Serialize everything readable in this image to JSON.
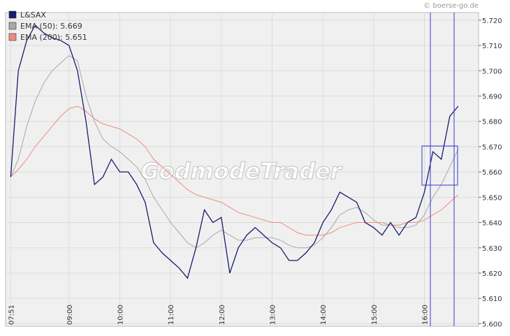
{
  "chart_data": {
    "type": "line",
    "source": "© boerse-go.de",
    "watermark": "GodmodeTrader",
    "x": [
      "07:51",
      "08:00",
      "08:10",
      "08:20",
      "08:30",
      "08:40",
      "08:50",
      "09:00",
      "09:10",
      "09:20",
      "09:30",
      "09:40",
      "09:50",
      "10:00",
      "10:10",
      "10:20",
      "10:30",
      "10:40",
      "10:50",
      "11:00",
      "11:10",
      "11:20",
      "11:30",
      "11:40",
      "11:50",
      "12:00",
      "12:10",
      "12:20",
      "12:30",
      "12:40",
      "12:50",
      "13:00",
      "13:10",
      "13:20",
      "13:30",
      "13:40",
      "13:50",
      "14:00",
      "14:10",
      "14:20",
      "14:30",
      "14:40",
      "14:50",
      "15:00",
      "15:10",
      "15:20",
      "15:30",
      "15:40",
      "15:50",
      "16:00",
      "16:10",
      "16:20",
      "16:30",
      "16:40"
    ],
    "xlim": [
      "07:45",
      "17:04"
    ],
    "xticks": [
      "07:51",
      "09:00",
      "10:00",
      "11:00",
      "12:00",
      "13:00",
      "14:00",
      "15:00",
      "16:00"
    ],
    "ylim": [
      5.599,
      5.723
    ],
    "yticks": [
      {
        "value": 5.6,
        "label": "5.600"
      },
      {
        "value": 5.61,
        "label": "5.610"
      },
      {
        "value": 5.62,
        "label": "5.620"
      },
      {
        "value": 5.63,
        "label": "5.630"
      },
      {
        "value": 5.64,
        "label": "5.640"
      },
      {
        "value": 5.65,
        "label": "5.650"
      },
      {
        "value": 5.66,
        "label": "5.660"
      },
      {
        "value": 5.67,
        "label": "5.670"
      },
      {
        "value": 5.68,
        "label": "5.680"
      },
      {
        "value": 5.69,
        "label": "5.690"
      },
      {
        "value": 5.7,
        "label": "5.700"
      },
      {
        "value": 5.71,
        "label": "5.710"
      },
      {
        "value": 5.72,
        "label": "5.720"
      }
    ],
    "grid": true,
    "legend": "top-left",
    "series": [
      {
        "name": "L&SAX",
        "color": "#1a1a6e",
        "values": [
          5.658,
          5.7,
          5.712,
          5.718,
          5.715,
          5.713,
          5.712,
          5.71,
          5.7,
          5.68,
          5.655,
          5.658,
          5.665,
          5.66,
          5.66,
          5.655,
          5.648,
          5.632,
          5.628,
          5.625,
          5.622,
          5.618,
          5.63,
          5.645,
          5.64,
          5.642,
          5.62,
          5.63,
          5.635,
          5.638,
          5.635,
          5.632,
          5.63,
          5.625,
          5.625,
          5.628,
          5.632,
          5.64,
          5.645,
          5.652,
          5.65,
          5.648,
          5.64,
          5.638,
          5.635,
          5.64,
          5.635,
          5.64,
          5.642,
          5.652,
          5.668,
          5.665,
          5.682,
          5.686
        ]
      },
      {
        "name": "EMA (50): 5.669",
        "color": "#a8a8a8",
        "values": [
          5.658,
          5.665,
          5.678,
          5.688,
          5.695,
          5.7,
          5.703,
          5.706,
          5.704,
          5.69,
          5.68,
          5.673,
          5.67,
          5.668,
          5.665,
          5.662,
          5.657,
          5.65,
          5.645,
          5.64,
          5.636,
          5.632,
          5.63,
          5.632,
          5.635,
          5.637,
          5.635,
          5.633,
          5.633,
          5.634,
          5.634,
          5.634,
          5.633,
          5.631,
          5.63,
          5.63,
          5.631,
          5.634,
          5.638,
          5.643,
          5.645,
          5.646,
          5.644,
          5.641,
          5.639,
          5.639,
          5.638,
          5.638,
          5.639,
          5.643,
          5.65,
          5.655,
          5.662,
          5.669
        ]
      },
      {
        "name": "EMA (200): 5.651",
        "color": "#f08a80",
        "values": [
          5.658,
          5.661,
          5.665,
          5.67,
          5.674,
          5.678,
          5.682,
          5.685,
          5.686,
          5.684,
          5.681,
          5.679,
          5.678,
          5.677,
          5.675,
          5.673,
          5.67,
          5.665,
          5.662,
          5.659,
          5.656,
          5.653,
          5.651,
          5.65,
          5.649,
          5.648,
          5.646,
          5.644,
          5.643,
          5.642,
          5.641,
          5.64,
          5.64,
          5.638,
          5.636,
          5.635,
          5.635,
          5.635,
          5.636,
          5.638,
          5.639,
          5.64,
          5.64,
          5.64,
          5.64,
          5.639,
          5.639,
          5.64,
          5.64,
          5.641,
          5.643,
          5.645,
          5.648,
          5.651
        ]
      }
    ]
  }
}
